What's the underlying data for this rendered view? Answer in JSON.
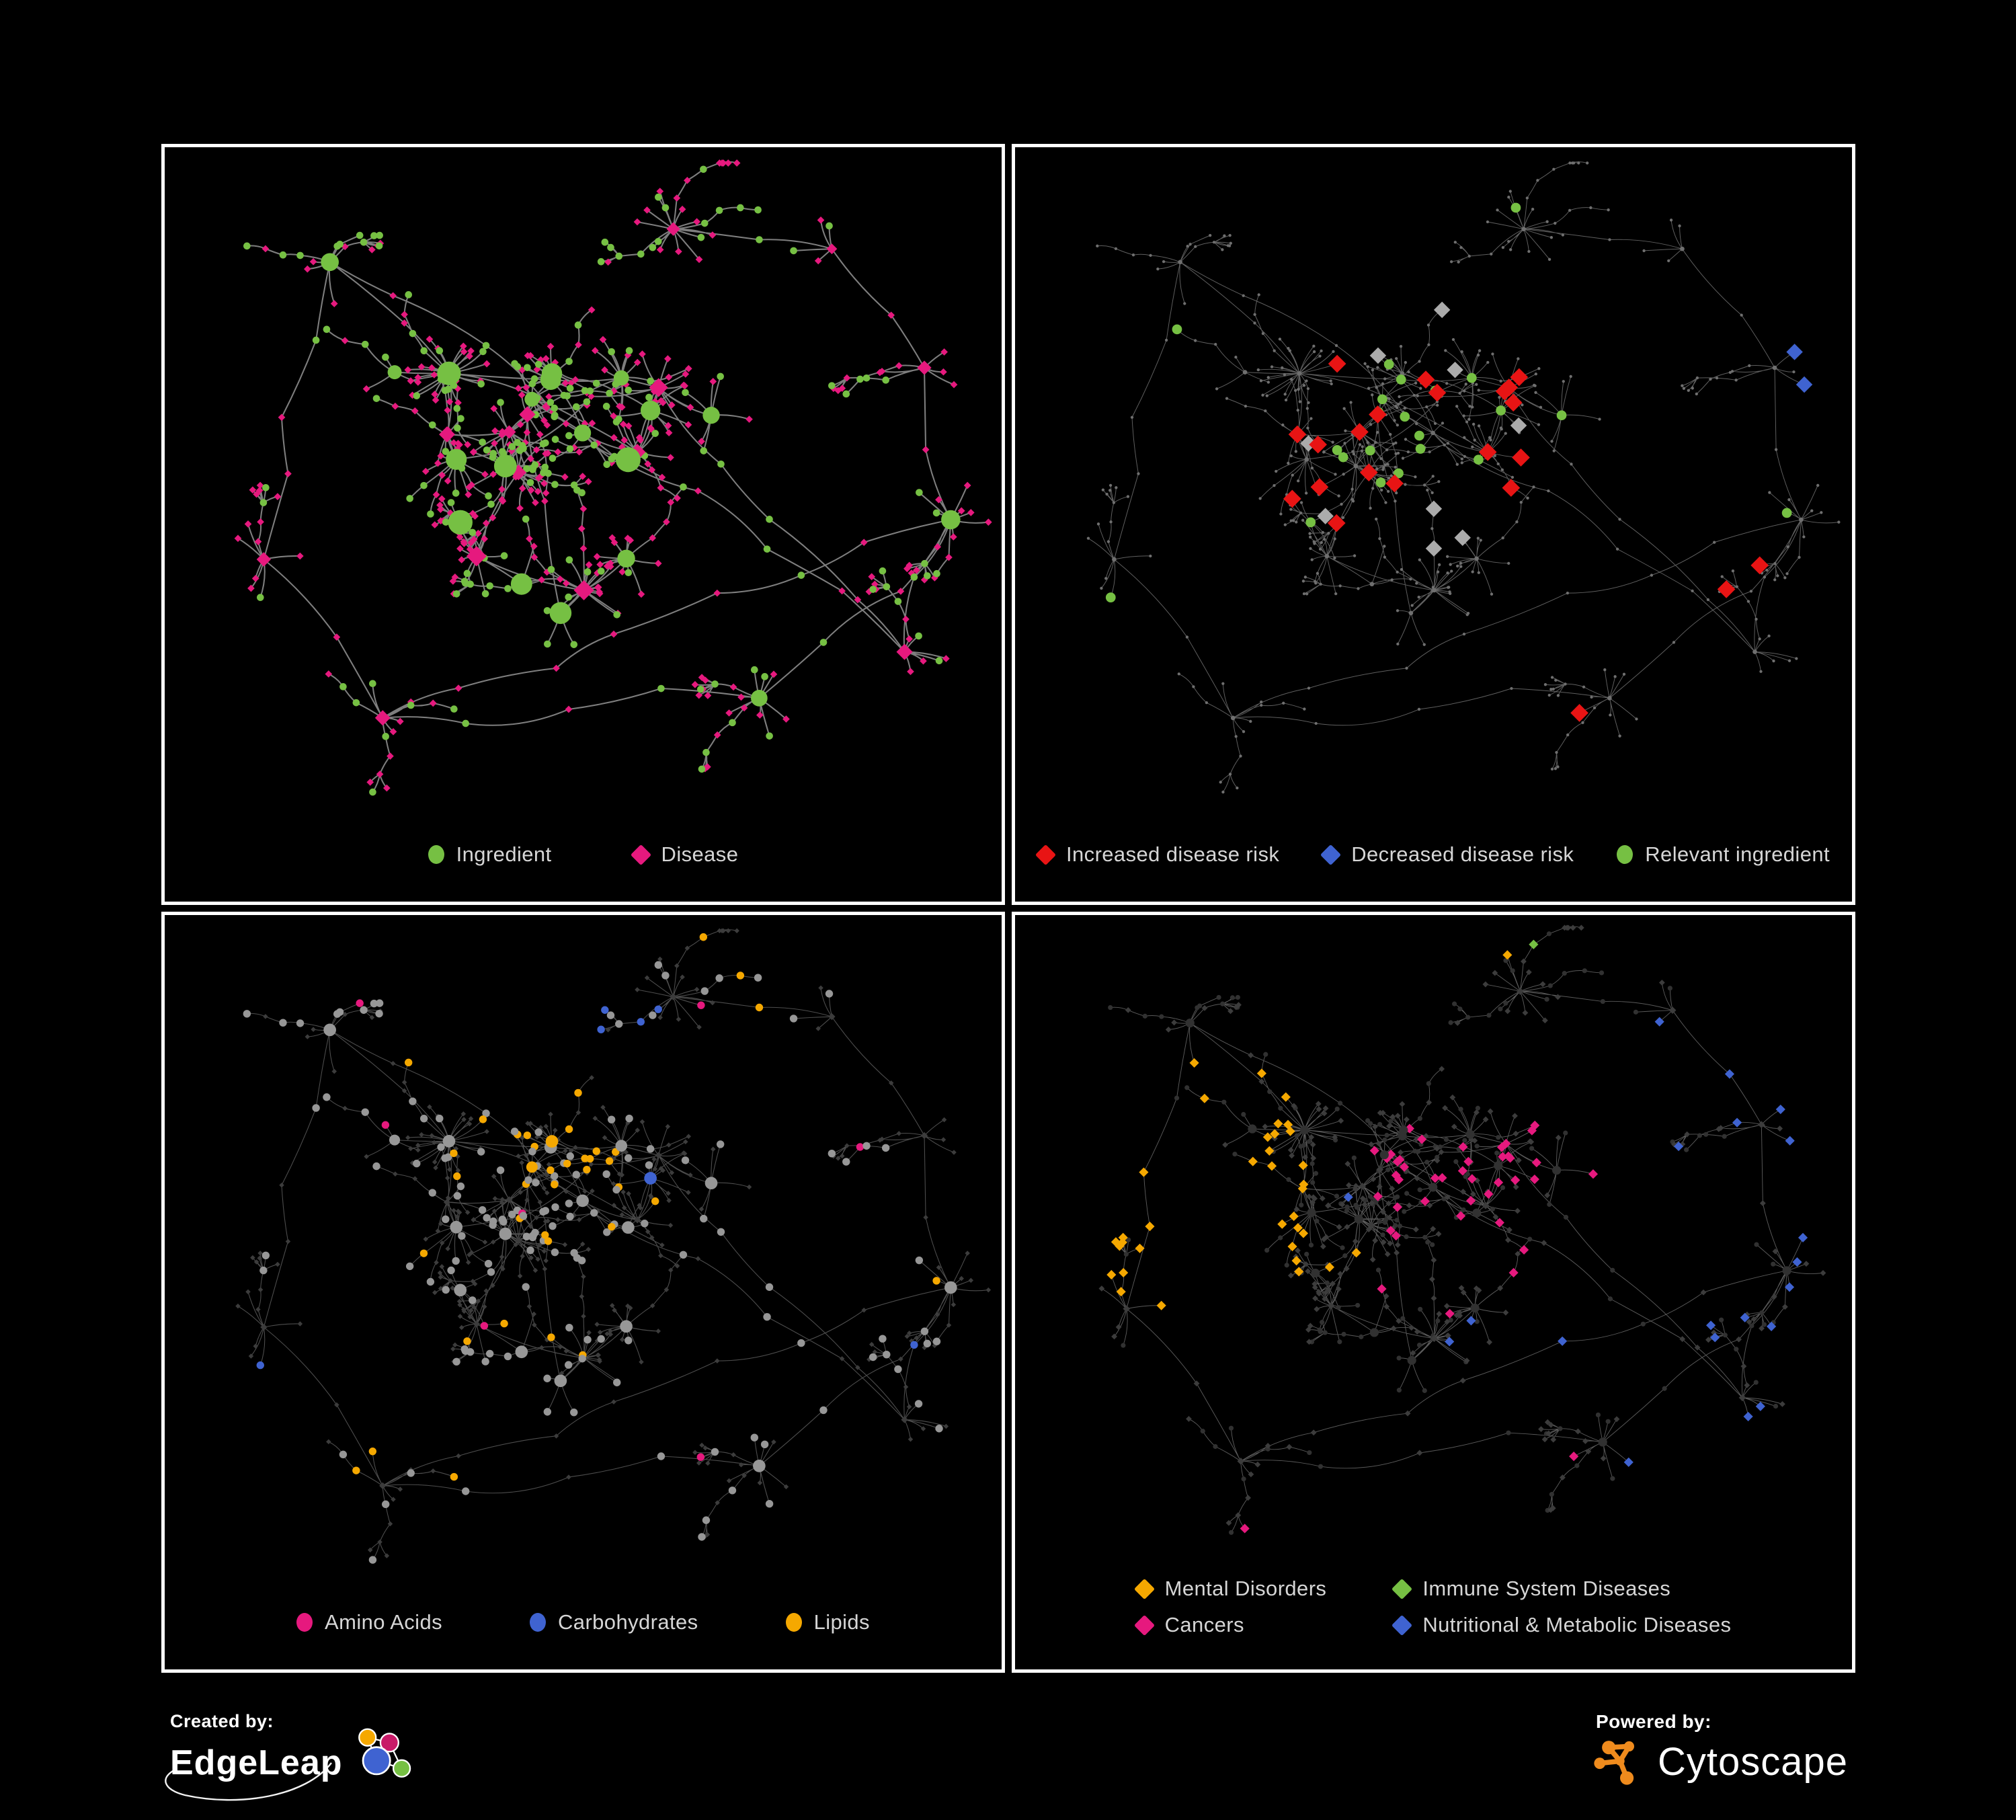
{
  "figure": {
    "background": "#000000",
    "frame_color": "#ffffff",
    "legend_text_color": "#d6d6d6"
  },
  "palette": {
    "green": "#76C043",
    "pink": "#E6197E",
    "red": "#E81414",
    "blue": "#3F63D1",
    "orange": "#F5A800",
    "gray_highlight": "#ABABAB",
    "dim_node": "#6F6F6F",
    "mid_gray_circle": "#979797",
    "dark_diamond": "#3C3C3C",
    "dark_circle": "#313131",
    "edge_light": "#8C8C8C",
    "edge_dim": "#707070",
    "cytoscape_orange": "#EF8B1D",
    "edgeleap_orange": "#F5A800",
    "edgeleap_magenta": "#C81A68",
    "edgeleap_blue": "#3F63D1",
    "edgeleap_green": "#76C043"
  },
  "panels": [
    {
      "id": "ingredient-disease-network",
      "legend": [
        {
          "label": "Ingredient",
          "shape": "circle",
          "color": "#76C043"
        },
        {
          "label": "Disease",
          "shape": "diamond",
          "color": "#E6197E"
        }
      ],
      "legend_layout": "row",
      "legend_gap": "gap-lg"
    },
    {
      "id": "disease-risk-network",
      "legend": [
        {
          "label": "Increased disease risk",
          "shape": "diamond",
          "color": "#E81414"
        },
        {
          "label": "Decreased disease risk",
          "shape": "diamond",
          "color": "#3F63D1"
        },
        {
          "label": "Relevant ingredient",
          "shape": "circle",
          "color": "#76C043"
        }
      ],
      "legend_layout": "row",
      "legend_gap": "gap-md"
    },
    {
      "id": "ingredient-classes-network",
      "legend": [
        {
          "label": "Amino Acids",
          "shape": "circle",
          "color": "#E6197E"
        },
        {
          "label": "Carbohydrates",
          "shape": "circle",
          "color": "#3F63D1"
        },
        {
          "label": "Lipids",
          "shape": "circle",
          "color": "#F5A800"
        }
      ],
      "legend_layout": "row",
      "legend_gap": "gap-xl"
    },
    {
      "id": "disease-classes-network",
      "legend": [
        {
          "label": "Mental Disorders",
          "shape": "diamond",
          "color": "#F5A800"
        },
        {
          "label": "Immune System Diseases",
          "shape": "diamond",
          "color": "#76C043"
        },
        {
          "label": "Cancers",
          "shape": "diamond",
          "color": "#E6197E"
        },
        {
          "label": "Nutritional & Metabolic Diseases",
          "shape": "diamond",
          "color": "#3F63D1"
        }
      ],
      "legend_layout": "grid2",
      "legend_gap": "grid2"
    }
  ],
  "footer": {
    "created_by_label": "Created by:",
    "created_by_brand": "EdgeLeap",
    "powered_by_label": "Powered by:",
    "powered_by_brand": "Cytoscape"
  }
}
